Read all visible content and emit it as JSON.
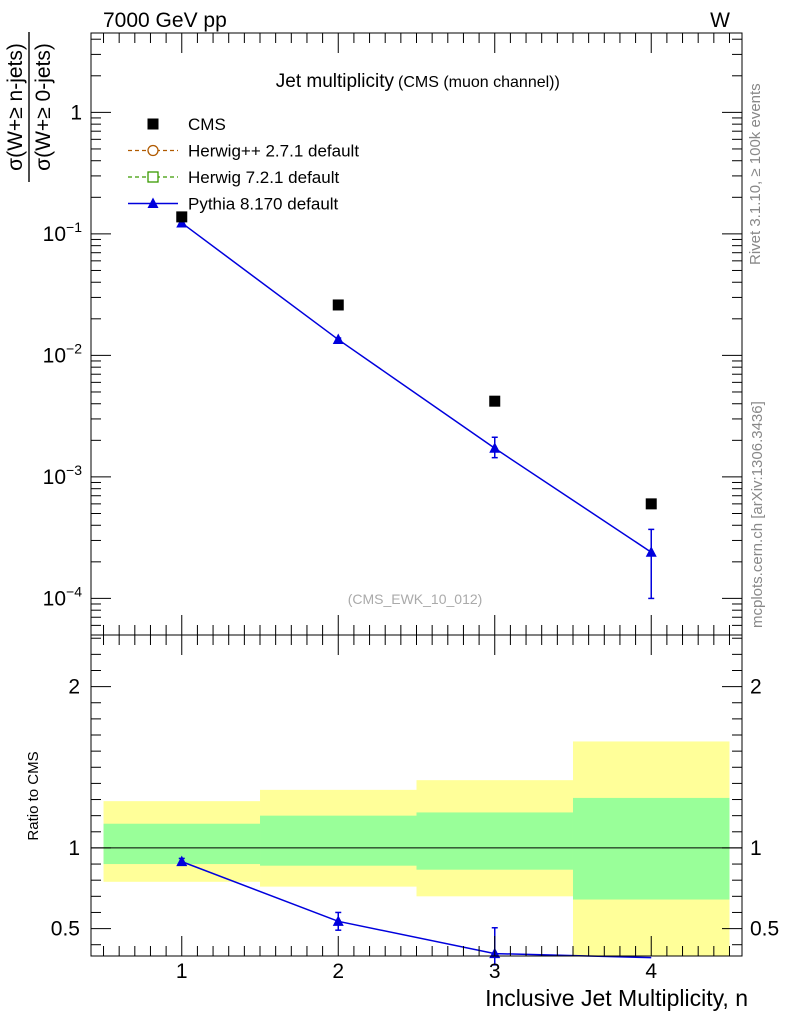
{
  "header": {
    "left": "7000 GeV pp",
    "right": "W"
  },
  "side_labels": {
    "rivet": "Rivet 3.1.10, ≥ 100k events",
    "mcplots": "mcplots.cern.ch [arXiv:1306.3436]"
  },
  "chart_data": {
    "type": "scatter",
    "title": "Jet multiplicity",
    "subtitle": "(CMS (muon channel))",
    "analysis_tag": "(CMS_EWK_10_012)",
    "ylabel_num": "σ(W+≥ n-jets)",
    "ylabel_den": "σ(W+≥ 0-jets)",
    "xlabel": "Inclusive Jet Multiplicity, n",
    "ratio_ylabel": "Ratio to CMS",
    "x": [
      1,
      2,
      3,
      4
    ],
    "xlim": [
      0.42,
      4.58
    ],
    "ylim": [
      5e-05,
      4.5
    ],
    "yscale": "log",
    "ratio_ylim": [
      0.33,
      2.32
    ],
    "x_tick_labels": [
      "1",
      "2",
      "3",
      "4"
    ],
    "y_tick_labels": [
      {
        "base": "10",
        "exp": "−4",
        "value": 0.0001
      },
      {
        "base": "10",
        "exp": "−3",
        "value": 0.001
      },
      {
        "base": "10",
        "exp": "−2",
        "value": 0.01
      },
      {
        "base": "10",
        "exp": "−1",
        "value": 0.1
      },
      {
        "base": "1",
        "exp": "",
        "value": 1
      }
    ],
    "ratio_tick_labels": [
      {
        "label": "0.5",
        "value": 0.5
      },
      {
        "label": "1",
        "value": 1
      },
      {
        "label": "2",
        "value": 2
      }
    ],
    "legend": [
      {
        "label": "CMS",
        "style": "data",
        "color": "#000000"
      },
      {
        "label": "Herwig++ 2.7.1 default",
        "style": "circle-dashed",
        "color": "#b05a00"
      },
      {
        "label": "Herwig 7.2.1 default",
        "style": "square-dashed",
        "color": "#3a9a00"
      },
      {
        "label": "Pythia 8.170 default",
        "style": "triangle-line",
        "color": "#0000dd"
      }
    ],
    "series": [
      {
        "name": "CMS",
        "values": [
          0.138,
          0.026,
          0.0042,
          0.0006
        ]
      },
      {
        "name": "Pythia 8.170 default",
        "values": [
          0.123,
          0.0135,
          0.00172,
          0.00024
        ],
        "err_low": [
          0.003,
          0.0004,
          0.00028,
          0.00014
        ],
        "err_high": [
          0.003,
          0.0004,
          0.0004,
          0.00013
        ]
      }
    ],
    "ratio_series": {
      "name": "Pythia 8.170 default",
      "values": [
        0.915,
        0.545,
        0.345,
        0.32
      ],
      "err_low": [
        0.02,
        0.055,
        0.07,
        0.0
      ],
      "err_high": [
        0.02,
        0.055,
        0.16,
        0.0
      ]
    },
    "ratio_bands": [
      {
        "x_low": 0.5,
        "x_high": 1.5,
        "inner": [
          0.9,
          1.15
        ],
        "outer": [
          0.79,
          1.29
        ]
      },
      {
        "x_low": 1.5,
        "x_high": 2.5,
        "inner": [
          0.89,
          1.2
        ],
        "outer": [
          0.76,
          1.36
        ]
      },
      {
        "x_low": 2.5,
        "x_high": 3.5,
        "inner": [
          0.865,
          1.22
        ],
        "outer": [
          0.7,
          1.42
        ]
      },
      {
        "x_low": 3.5,
        "x_high": 4.5,
        "inner": [
          0.68,
          1.31
        ],
        "outer": [
          0.33,
          1.66
        ]
      }
    ],
    "colors": {
      "data": "#000000",
      "pythia": "#0000dd",
      "herwigpp": "#b05a00",
      "herwig7": "#3a9a00",
      "band_inner": "#99ff99",
      "band_outer": "#ffff99",
      "side_text": "#888888"
    }
  }
}
